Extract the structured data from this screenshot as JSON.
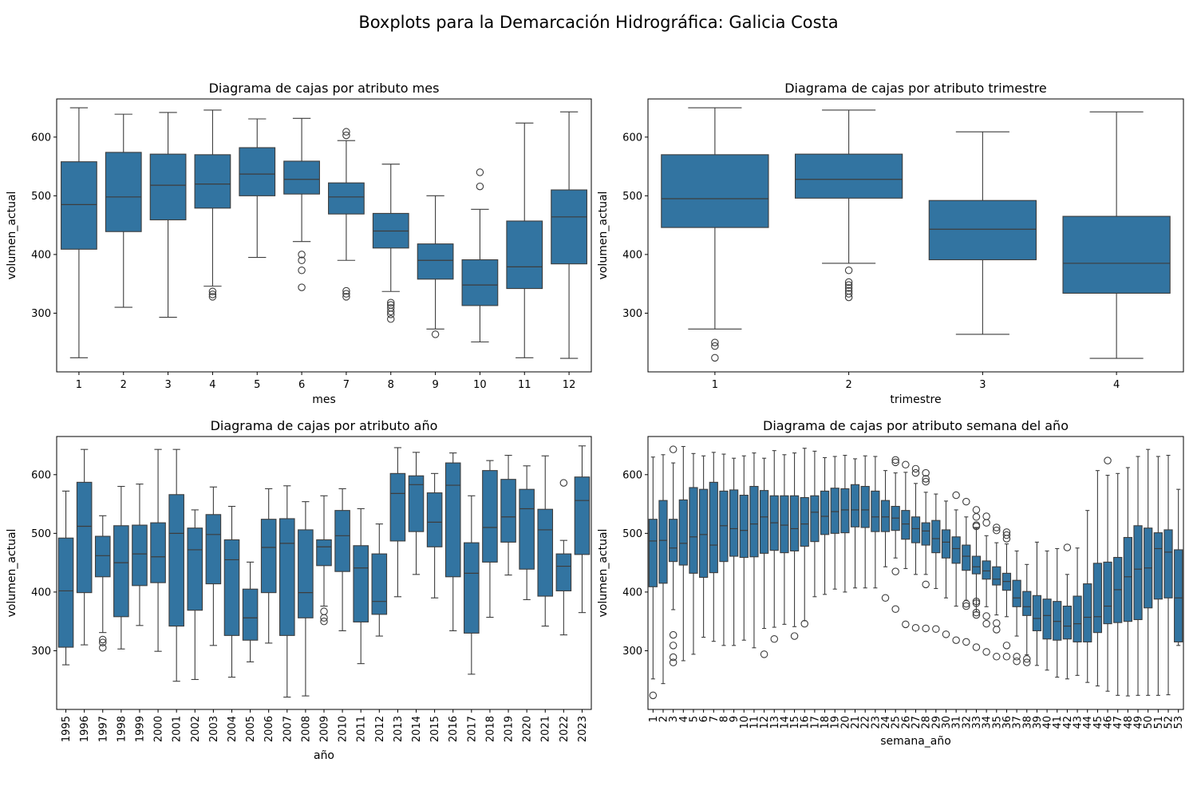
{
  "suptitle": "Boxplots para la Demarcación Hidrográfica: Galicia Costa",
  "colors": {
    "box": "#3274a1",
    "line": "#3d3d3d"
  },
  "chart_data": [
    {
      "type": "boxplot",
      "title": "Diagrama de cajas por atributo mes",
      "xlabel": "mes",
      "ylabel": "volumen_actual",
      "ylim": [
        200,
        665
      ],
      "yticks": [
        300,
        400,
        500,
        600
      ],
      "categories": [
        "1",
        "2",
        "3",
        "4",
        "5",
        "6",
        "7",
        "8",
        "9",
        "10",
        "11",
        "12"
      ],
      "boxes": [
        {
          "wlo": 224,
          "q1": 409,
          "med": 485,
          "q3": 558,
          "whi": 650,
          "out": []
        },
        {
          "wlo": 310,
          "q1": 439,
          "med": 498,
          "q3": 574,
          "whi": 639,
          "out": []
        },
        {
          "wlo": 293,
          "q1": 459,
          "med": 518,
          "q3": 571,
          "whi": 642,
          "out": []
        },
        {
          "wlo": 346,
          "q1": 479,
          "med": 520,
          "q3": 570,
          "whi": 646,
          "out": [
            337,
            332,
            328
          ]
        },
        {
          "wlo": 395,
          "q1": 500,
          "med": 537,
          "q3": 582,
          "whi": 631,
          "out": []
        },
        {
          "wlo": 422,
          "q1": 503,
          "med": 528,
          "q3": 559,
          "whi": 632,
          "out": [
            400,
            390,
            373,
            344
          ]
        },
        {
          "wlo": 390,
          "q1": 469,
          "med": 498,
          "q3": 522,
          "whi": 594,
          "out": [
            609,
            603,
            338,
            333,
            328
          ]
        },
        {
          "wlo": 337,
          "q1": 411,
          "med": 440,
          "q3": 470,
          "whi": 554,
          "out": [
            318,
            314,
            309,
            303,
            298,
            290
          ]
        },
        {
          "wlo": 273,
          "q1": 358,
          "med": 390,
          "q3": 418,
          "whi": 500,
          "out": [
            264
          ]
        },
        {
          "wlo": 251,
          "q1": 313,
          "med": 348,
          "q3": 391,
          "whi": 477,
          "out": [
            540,
            516
          ]
        },
        {
          "wlo": 224,
          "q1": 342,
          "med": 379,
          "q3": 457,
          "whi": 624,
          "out": []
        },
        {
          "wlo": 223,
          "q1": 384,
          "med": 464,
          "q3": 510,
          "whi": 643,
          "out": []
        }
      ]
    },
    {
      "type": "boxplot",
      "title": "Diagrama de cajas por atributo trimestre",
      "xlabel": "trimestre",
      "ylabel": "volumen_actual",
      "ylim": [
        200,
        665
      ],
      "yticks": [
        300,
        400,
        500,
        600
      ],
      "categories": [
        "1",
        "2",
        "3",
        "4"
      ],
      "boxes": [
        {
          "wlo": 273,
          "q1": 446,
          "med": 495,
          "q3": 570,
          "whi": 650,
          "out": [
            250,
            244,
            224
          ]
        },
        {
          "wlo": 385,
          "q1": 496,
          "med": 528,
          "q3": 571,
          "whi": 646,
          "out": [
            373,
            353,
            348,
            343,
            338,
            333,
            327
          ]
        },
        {
          "wlo": 264,
          "q1": 391,
          "med": 443,
          "q3": 492,
          "whi": 609,
          "out": []
        },
        {
          "wlo": 223,
          "q1": 334,
          "med": 385,
          "q3": 465,
          "whi": 643,
          "out": []
        }
      ]
    },
    {
      "type": "boxplot",
      "title": "Diagrama de cajas por atributo año",
      "xlabel": "año",
      "ylabel": "volumen_actual",
      "ylim": [
        200,
        665
      ],
      "yticks": [
        300,
        400,
        500,
        600
      ],
      "xtick_rotation": 90,
      "categories": [
        "1995",
        "1996",
        "1997",
        "1998",
        "1999",
        "2000",
        "2001",
        "2002",
        "2003",
        "2004",
        "2005",
        "2006",
        "2007",
        "2008",
        "2009",
        "2010",
        "2011",
        "2012",
        "2013",
        "2014",
        "2015",
        "2016",
        "2017",
        "2018",
        "2019",
        "2020",
        "2021",
        "2022",
        "2023"
      ],
      "boxes": [
        {
          "wlo": 276,
          "q1": 306,
          "med": 402,
          "q3": 492,
          "whi": 572,
          "out": []
        },
        {
          "wlo": 310,
          "q1": 399,
          "med": 512,
          "q3": 587,
          "whi": 643,
          "out": []
        },
        {
          "wlo": 331,
          "q1": 426,
          "med": 462,
          "q3": 495,
          "whi": 530,
          "out": [
            319,
            314,
            305
          ]
        },
        {
          "wlo": 303,
          "q1": 358,
          "med": 450,
          "q3": 513,
          "whi": 580,
          "out": []
        },
        {
          "wlo": 343,
          "q1": 411,
          "med": 465,
          "q3": 514,
          "whi": 584,
          "out": []
        },
        {
          "wlo": 299,
          "q1": 416,
          "med": 460,
          "q3": 518,
          "whi": 643,
          "out": []
        },
        {
          "wlo": 248,
          "q1": 342,
          "med": 500,
          "q3": 566,
          "whi": 643,
          "out": []
        },
        {
          "wlo": 251,
          "q1": 369,
          "med": 472,
          "q3": 509,
          "whi": 540,
          "out": []
        },
        {
          "wlo": 309,
          "q1": 414,
          "med": 498,
          "q3": 532,
          "whi": 579,
          "out": []
        },
        {
          "wlo": 255,
          "q1": 326,
          "med": 455,
          "q3": 489,
          "whi": 546,
          "out": []
        },
        {
          "wlo": 281,
          "q1": 318,
          "med": 356,
          "q3": 405,
          "whi": 451,
          "out": []
        },
        {
          "wlo": 313,
          "q1": 399,
          "med": 476,
          "q3": 524,
          "whi": 576,
          "out": []
        },
        {
          "wlo": 221,
          "q1": 326,
          "med": 483,
          "q3": 525,
          "whi": 581,
          "out": []
        },
        {
          "wlo": 223,
          "q1": 356,
          "med": 399,
          "q3": 506,
          "whi": 554,
          "out": []
        },
        {
          "wlo": 376,
          "q1": 445,
          "med": 477,
          "q3": 489,
          "whi": 564,
          "out": [
            367,
            356,
            350
          ]
        },
        {
          "wlo": 334,
          "q1": 435,
          "med": 496,
          "q3": 539,
          "whi": 576,
          "out": []
        },
        {
          "wlo": 278,
          "q1": 349,
          "med": 441,
          "q3": 479,
          "whi": 542,
          "out": []
        },
        {
          "wlo": 325,
          "q1": 362,
          "med": 384,
          "q3": 465,
          "whi": 516,
          "out": []
        },
        {
          "wlo": 392,
          "q1": 487,
          "med": 568,
          "q3": 602,
          "whi": 646,
          "out": []
        },
        {
          "wlo": 430,
          "q1": 503,
          "med": 583,
          "q3": 598,
          "whi": 638,
          "out": []
        },
        {
          "wlo": 390,
          "q1": 477,
          "med": 519,
          "q3": 569,
          "whi": 602,
          "out": []
        },
        {
          "wlo": 334,
          "q1": 426,
          "med": 582,
          "q3": 620,
          "whi": 637,
          "out": []
        },
        {
          "wlo": 260,
          "q1": 330,
          "med": 432,
          "q3": 484,
          "whi": 564,
          "out": []
        },
        {
          "wlo": 357,
          "q1": 451,
          "med": 510,
          "q3": 607,
          "whi": 624,
          "out": []
        },
        {
          "wlo": 429,
          "q1": 485,
          "med": 528,
          "q3": 592,
          "whi": 633,
          "out": []
        },
        {
          "wlo": 387,
          "q1": 439,
          "med": 542,
          "q3": 575,
          "whi": 615,
          "out": []
        },
        {
          "wlo": 342,
          "q1": 393,
          "med": 506,
          "q3": 541,
          "whi": 632,
          "out": []
        },
        {
          "wlo": 327,
          "q1": 402,
          "med": 444,
          "q3": 465,
          "whi": 488,
          "out": [
            586
          ]
        },
        {
          "wlo": 365,
          "q1": 464,
          "med": 556,
          "q3": 596,
          "whi": 649,
          "out": []
        }
      ]
    },
    {
      "type": "boxplot",
      "title": "Diagrama de cajas por atributo semana del año",
      "xlabel": "semana_año",
      "ylabel": "volumen_actual",
      "ylim": [
        200,
        665
      ],
      "yticks": [
        300,
        400,
        500,
        600
      ],
      "xtick_rotation": 90,
      "categories": [
        "1",
        "2",
        "3",
        "4",
        "5",
        "6",
        "7",
        "8",
        "9",
        "10",
        "11",
        "12",
        "13",
        "14",
        "15",
        "16",
        "17",
        "18",
        "19",
        "20",
        "21",
        "22",
        "23",
        "24",
        "25",
        "26",
        "27",
        "28",
        "29",
        "30",
        "31",
        "32",
        "33",
        "34",
        "35",
        "36",
        "37",
        "38",
        "39",
        "40",
        "41",
        "42",
        "43",
        "44",
        "45",
        "46",
        "47",
        "48",
        "49",
        "50",
        "51",
        "52",
        "53"
      ],
      "boxes": [
        {
          "wlo": 252,
          "q1": 409,
          "med": 487,
          "q3": 524,
          "whi": 630,
          "out": [
            224
          ]
        },
        {
          "wlo": 244,
          "q1": 415,
          "med": 488,
          "q3": 556,
          "whi": 634,
          "out": []
        },
        {
          "wlo": 370,
          "q1": 452,
          "med": 475,
          "q3": 524,
          "whi": 620,
          "out": [
            643,
            327,
            309,
            289,
            280
          ]
        },
        {
          "wlo": 283,
          "q1": 446,
          "med": 483,
          "q3": 557,
          "whi": 648,
          "out": []
        },
        {
          "wlo": 294,
          "q1": 432,
          "med": 494,
          "q3": 578,
          "whi": 636,
          "out": []
        },
        {
          "wlo": 323,
          "q1": 425,
          "med": 498,
          "q3": 575,
          "whi": 632,
          "out": []
        },
        {
          "wlo": 316,
          "q1": 433,
          "med": 480,
          "q3": 587,
          "whi": 638,
          "out": []
        },
        {
          "wlo": 309,
          "q1": 452,
          "med": 513,
          "q3": 572,
          "whi": 635,
          "out": []
        },
        {
          "wlo": 309,
          "q1": 461,
          "med": 508,
          "q3": 574,
          "whi": 628,
          "out": []
        },
        {
          "wlo": 318,
          "q1": 459,
          "med": 505,
          "q3": 565,
          "whi": 632,
          "out": []
        },
        {
          "wlo": 305,
          "q1": 460,
          "med": 516,
          "q3": 580,
          "whi": 637,
          "out": []
        },
        {
          "wlo": 338,
          "q1": 466,
          "med": 528,
          "q3": 573,
          "whi": 628,
          "out": [
            294
          ]
        },
        {
          "wlo": 340,
          "q1": 471,
          "med": 518,
          "q3": 564,
          "whi": 641,
          "out": [
            320
          ]
        },
        {
          "wlo": 345,
          "q1": 467,
          "med": 514,
          "q3": 564,
          "whi": 634,
          "out": []
        },
        {
          "wlo": 341,
          "q1": 470,
          "med": 508,
          "q3": 564,
          "whi": 637,
          "out": [
            325
          ]
        },
        {
          "wlo": 351,
          "q1": 478,
          "med": 516,
          "q3": 561,
          "whi": 645,
          "out": [
            346
          ]
        },
        {
          "wlo": 392,
          "q1": 486,
          "med": 536,
          "q3": 564,
          "whi": 640,
          "out": []
        },
        {
          "wlo": 396,
          "q1": 498,
          "med": 529,
          "q3": 572,
          "whi": 629,
          "out": []
        },
        {
          "wlo": 405,
          "q1": 500,
          "med": 537,
          "q3": 577,
          "whi": 631,
          "out": []
        },
        {
          "wlo": 400,
          "q1": 501,
          "med": 540,
          "q3": 576,
          "whi": 633,
          "out": []
        },
        {
          "wlo": 407,
          "q1": 511,
          "med": 540,
          "q3": 583,
          "whi": 627,
          "out": []
        },
        {
          "wlo": 407,
          "q1": 510,
          "med": 540,
          "q3": 580,
          "whi": 632,
          "out": []
        },
        {
          "wlo": 407,
          "q1": 503,
          "med": 528,
          "q3": 572,
          "whi": 631,
          "out": []
        },
        {
          "wlo": 443,
          "q1": 503,
          "med": 528,
          "q3": 556,
          "whi": 607,
          "out": [
            390
          ]
        },
        {
          "wlo": 458,
          "q1": 505,
          "med": 526,
          "q3": 546,
          "whi": 603,
          "out": [
            625,
            621,
            435,
            371
          ]
        },
        {
          "wlo": 440,
          "q1": 490,
          "med": 516,
          "q3": 539,
          "whi": 604,
          "out": [
            617,
            345
          ]
        },
        {
          "wlo": 430,
          "q1": 484,
          "med": 508,
          "q3": 528,
          "whi": 585,
          "out": [
            610,
            603,
            339
          ]
        },
        {
          "wlo": 430,
          "q1": 480,
          "med": 504,
          "q3": 518,
          "whi": 570,
          "out": [
            603,
            593,
            588,
            413,
            338
          ]
        },
        {
          "wlo": 406,
          "q1": 467,
          "med": 491,
          "q3": 522,
          "whi": 567,
          "out": [
            337
          ]
        },
        {
          "wlo": 390,
          "q1": 458,
          "med": 485,
          "q3": 506,
          "whi": 555,
          "out": [
            328
          ]
        },
        {
          "wlo": 376,
          "q1": 449,
          "med": 474,
          "q3": 494,
          "whi": 540,
          "out": [
            565,
            318
          ]
        },
        {
          "wlo": 386,
          "q1": 437,
          "med": 461,
          "q3": 480,
          "whi": 528,
          "out": [
            554,
            380,
            376,
            315
          ]
        },
        {
          "wlo": 366,
          "q1": 431,
          "med": 443,
          "q3": 461,
          "whi": 510,
          "out": [
            540,
            528,
            514,
            512,
            384,
            381,
            365,
            361,
            306
          ]
        },
        {
          "wlo": 375,
          "q1": 422,
          "med": 436,
          "q3": 453,
          "whi": 496,
          "out": [
            529,
            518,
            359,
            346,
            298
          ]
        },
        {
          "wlo": 361,
          "q1": 412,
          "med": 422,
          "q3": 443,
          "whi": 484,
          "out": [
            510,
            505,
            347,
            336,
            290
          ]
        },
        {
          "wlo": 358,
          "q1": 403,
          "med": 418,
          "q3": 432,
          "whi": 482,
          "out": [
            502,
            497,
            491,
            309,
            290
          ]
        },
        {
          "wlo": 325,
          "q1": 375,
          "med": 390,
          "q3": 420,
          "whi": 470,
          "out": [
            290,
            282
          ]
        },
        {
          "wlo": 293,
          "q1": 360,
          "med": 375,
          "q3": 401,
          "whi": 447,
          "out": [
            286,
            280
          ]
        },
        {
          "wlo": 275,
          "q1": 334,
          "med": 355,
          "q3": 394,
          "whi": 485,
          "out": []
        },
        {
          "wlo": 267,
          "q1": 320,
          "med": 360,
          "q3": 388,
          "whi": 470,
          "out": []
        },
        {
          "wlo": 255,
          "q1": 318,
          "med": 350,
          "q3": 384,
          "whi": 474,
          "out": []
        },
        {
          "wlo": 252,
          "q1": 320,
          "med": 342,
          "q3": 376,
          "whi": 430,
          "out": [
            476
          ]
        },
        {
          "wlo": 258,
          "q1": 315,
          "med": 346,
          "q3": 393,
          "whi": 475,
          "out": []
        },
        {
          "wlo": 246,
          "q1": 315,
          "med": 357,
          "q3": 414,
          "whi": 539,
          "out": []
        },
        {
          "wlo": 240,
          "q1": 331,
          "med": 358,
          "q3": 449,
          "whi": 607,
          "out": []
        },
        {
          "wlo": 231,
          "q1": 346,
          "med": 376,
          "q3": 451,
          "whi": 599,
          "out": [
            624
          ]
        },
        {
          "wlo": 224,
          "q1": 348,
          "med": 404,
          "q3": 459,
          "whi": 602,
          "out": []
        },
        {
          "wlo": 223,
          "q1": 350,
          "med": 426,
          "q3": 493,
          "whi": 612,
          "out": []
        },
        {
          "wlo": 224,
          "q1": 353,
          "med": 439,
          "q3": 513,
          "whi": 631,
          "out": []
        },
        {
          "wlo": 224,
          "q1": 373,
          "med": 441,
          "q3": 509,
          "whi": 643,
          "out": []
        },
        {
          "wlo": 224,
          "q1": 388,
          "med": 474,
          "q3": 501,
          "whi": 631,
          "out": []
        },
        {
          "wlo": 225,
          "q1": 390,
          "med": 468,
          "q3": 506,
          "whi": 633,
          "out": []
        },
        {
          "wlo": 309,
          "q1": 315,
          "med": 390,
          "q3": 472,
          "whi": 575,
          "out": []
        }
      ]
    }
  ]
}
